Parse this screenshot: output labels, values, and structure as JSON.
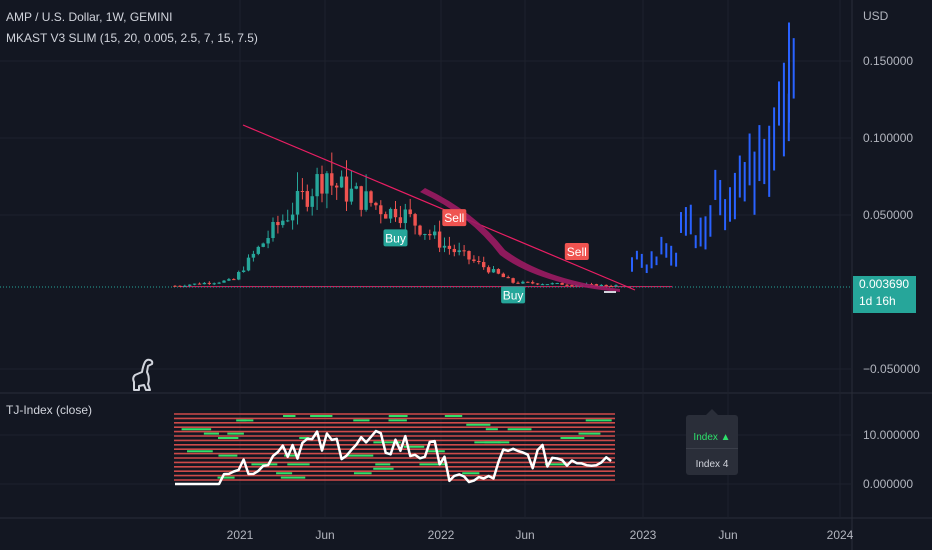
{
  "header": {
    "symbol_line": "AMP / U.S. Dollar, 1W, GEMINI",
    "indicator_line": "MKAST V3 SLIM (15, 20, 0.005, 2.5, 7, 15, 7.5)",
    "sub_indicator": "TJ-Index (close)"
  },
  "colors": {
    "background": "#131722",
    "up": "#26a69a",
    "down": "#ef5350",
    "projection": "#2962ff",
    "trendline": "#e91e63",
    "ribbon": "#9c1b63",
    "index_line": "#ffffff",
    "index_green": "#2ee06b"
  },
  "price_tag": {
    "price": "0.003690",
    "countdown": "1d 16h"
  },
  "tooltip": {
    "line1": "Index ▲",
    "line2": "Index 4"
  },
  "chart_data": [
    {
      "type": "candlestick",
      "title": "AMP / U.S. Dollar, 1W, GEMINI",
      "currency_label": "USD",
      "y_ticks": [
        "0.150000",
        "0.100000",
        "0.050000",
        "−0.050000"
      ],
      "y_tick_values": [
        0.15,
        0.1,
        0.05,
        -0.05
      ],
      "ylim": [
        -0.07,
        0.18
      ],
      "x_ticks": [
        "2021",
        "Jun",
        "2022",
        "Jun",
        "2023",
        "Jun",
        "2024"
      ],
      "last_price": 0.00369,
      "buy_sell_signals": [
        {
          "label": "Buy",
          "date_index": 45,
          "price": 0.04,
          "side": "buy"
        },
        {
          "label": "Sell",
          "date_index": 57,
          "price": 0.035,
          "side": "sell"
        },
        {
          "label": "Buy",
          "date_index": 69,
          "price": 0.003,
          "side": "buy"
        },
        {
          "label": "Sell",
          "date_index": 82,
          "price": 0.013,
          "side": "sell"
        }
      ],
      "trendline": {
        "from": {
          "date_index": 20,
          "price": 0.107
        },
        "to": {
          "date_index": 93,
          "price": 0.0
        }
      },
      "baseline_price": 0.0035,
      "projection_series": "blue bars continuing after 2023 rising to ~0.17",
      "grid": true
    },
    {
      "type": "line",
      "title": "TJ-Index (close)",
      "y_ticks": [
        "10.000000",
        "0.000000"
      ],
      "y_tick_values": [
        10,
        0
      ],
      "ylim": [
        -5,
        20
      ],
      "grid": true
    }
  ]
}
